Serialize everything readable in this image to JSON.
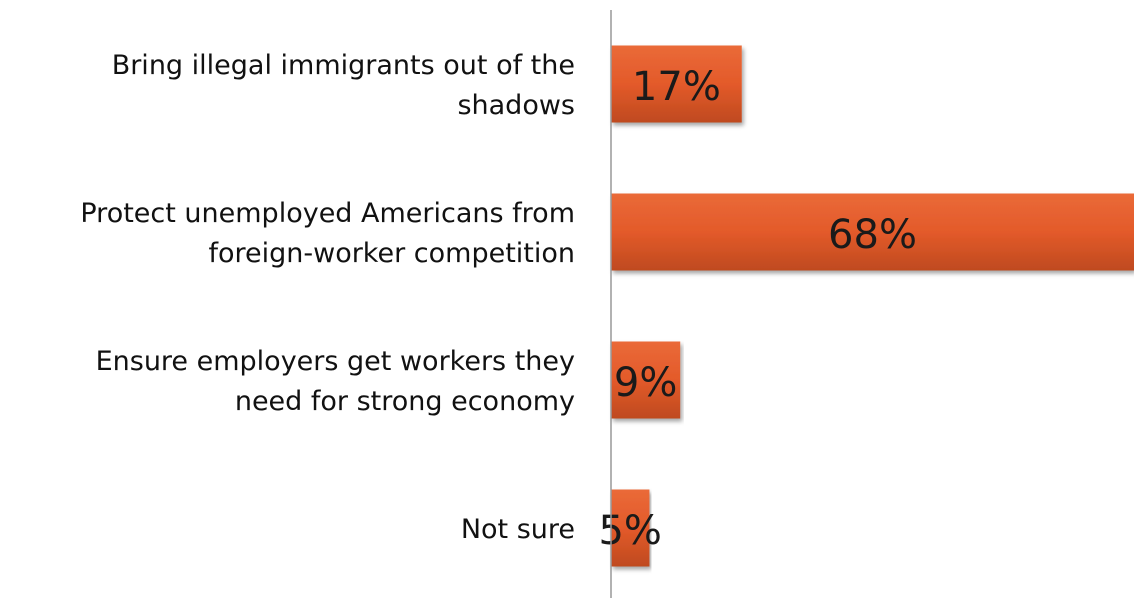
{
  "chart_data": {
    "type": "bar",
    "orientation": "horizontal",
    "categories": [
      "Bring illegal immigrants out of the\nshadows",
      "Protect unemployed Americans from\nforeign-worker competition",
      "Ensure employers get workers they\nneed for strong economy",
      "Not sure"
    ],
    "values": [
      17,
      68,
      9,
      5
    ],
    "value_labels": [
      "17%",
      "68%",
      "9%",
      "5%"
    ],
    "color": "#e35a2a",
    "xlim": [
      0,
      68
    ]
  }
}
